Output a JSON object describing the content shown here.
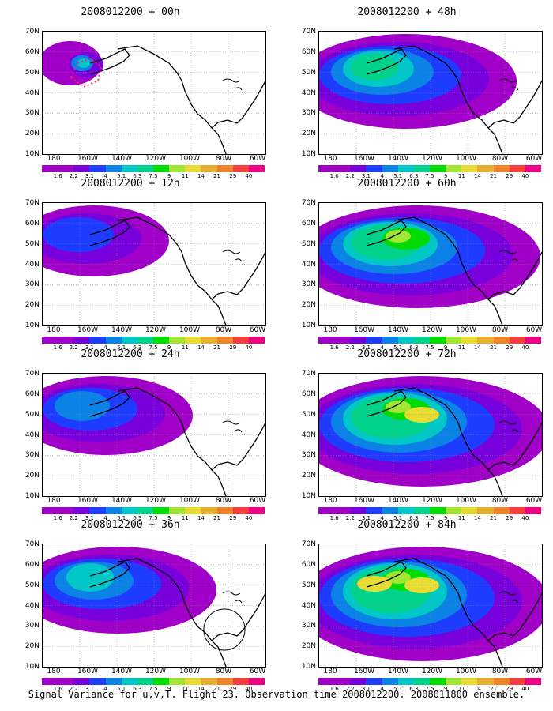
{
  "panels": [
    {
      "title": "2008012200 + 00h",
      "column": 0,
      "row": 0,
      "intensity": 0,
      "obs_circle": false,
      "flight_track": true
    },
    {
      "title": "2008012200 + 12h",
      "column": 0,
      "row": 1,
      "intensity": 1,
      "obs_circle": false,
      "flight_track": false
    },
    {
      "title": "2008012200 + 24h",
      "column": 0,
      "row": 2,
      "intensity": 2,
      "obs_circle": false,
      "flight_track": false
    },
    {
      "title": "2008012200 + 36h",
      "column": 0,
      "row": 3,
      "intensity": 3,
      "obs_circle": true,
      "flight_track": false
    },
    {
      "title": "2008012200 + 48h",
      "column": 1,
      "row": 0,
      "intensity": 4,
      "obs_circle": false,
      "flight_track": false
    },
    {
      "title": "2008012200 + 60h",
      "column": 1,
      "row": 1,
      "intensity": 5,
      "obs_circle": false,
      "flight_track": false
    },
    {
      "title": "2008012200 + 72h",
      "column": 1,
      "row": 2,
      "intensity": 6,
      "obs_circle": false,
      "flight_track": false
    },
    {
      "title": "2008012200 + 84h",
      "column": 1,
      "row": 3,
      "intensity": 7,
      "obs_circle": false,
      "flight_track": false
    }
  ],
  "axes": {
    "lat_labels": [
      "70N",
      "60N",
      "50N",
      "40N",
      "30N",
      "20N",
      "10N"
    ],
    "lon_labels": [
      "180",
      "160W",
      "140W",
      "120W",
      "100W",
      "80W",
      "60W"
    ]
  },
  "colorbar": {
    "labels": [
      "1.6",
      "2.2",
      "3.1",
      "4",
      "5.1",
      "6.3",
      "7.5",
      "9",
      "11",
      "14",
      "21",
      "29",
      "40"
    ],
    "colors": [
      "#a000c8",
      "#7800dc",
      "#1e3cff",
      "#0a82e6",
      "#00c8c8",
      "#00d28c",
      "#00dc00",
      "#a0e632",
      "#e6dc32",
      "#e6af2d",
      "#f08228",
      "#fa3c3c",
      "#f00082"
    ]
  },
  "caption": "Signal Variance for u,v,T. Flight 23. Observation time 2008012200. 2008011800 ensemble."
}
